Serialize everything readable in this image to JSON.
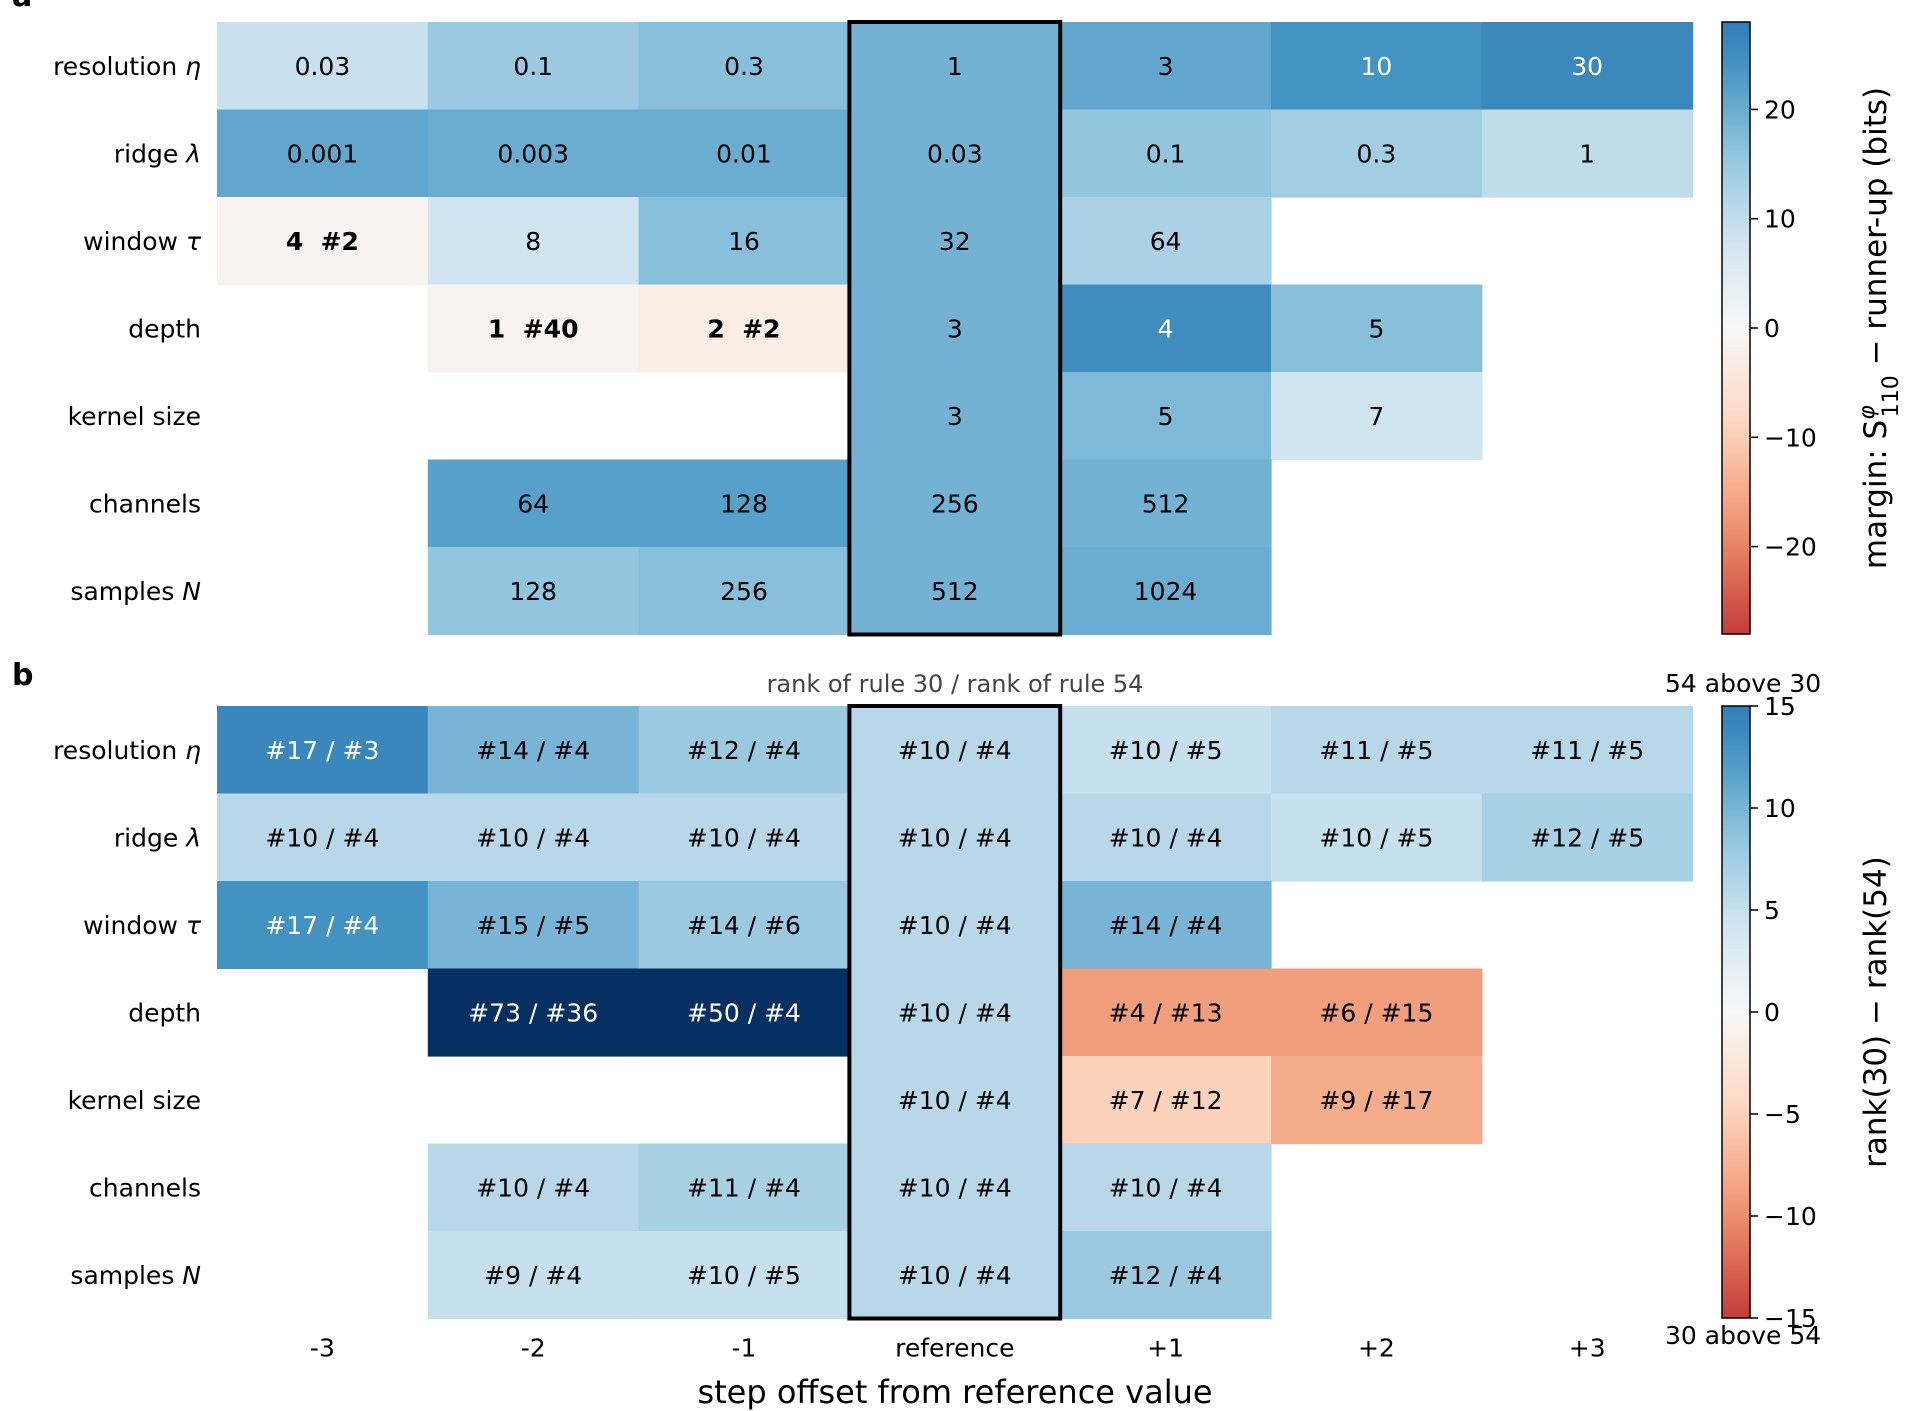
{
  "figure": {
    "xlabel": "step offset from reference value",
    "x_categories": [
      "-3",
      "-2",
      "-1",
      "reference",
      "+1",
      "+2",
      "+3"
    ],
    "row_labels": [
      "resolution η",
      "ridge λ",
      "window τ",
      "depth",
      "kernel size",
      "channels",
      "samples N"
    ]
  },
  "chart_data": [
    {
      "panel": "a",
      "type": "heatmap",
      "title": "",
      "categories_x": [
        "-3",
        "-2",
        "-1",
        "reference",
        "+1",
        "+2",
        "+3"
      ],
      "rows": [
        "resolution η",
        "ridge λ",
        "window τ",
        "depth",
        "kernel size",
        "channels",
        "samples N"
      ],
      "highlight_column": "reference",
      "cells": [
        [
          {
            "label": "0.03",
            "value": 9
          },
          {
            "label": "0.1",
            "value": 15
          },
          {
            "label": "0.3",
            "value": 17
          },
          {
            "label": "1",
            "value": 19
          },
          {
            "label": "3",
            "value": 21
          },
          {
            "label": "10",
            "value": 24
          },
          {
            "label": "30",
            "value": 26
          }
        ],
        [
          {
            "label": "0.001",
            "value": 21
          },
          {
            "label": "0.003",
            "value": 20
          },
          {
            "label": "0.01",
            "value": 20
          },
          {
            "label": "0.03",
            "value": 19
          },
          {
            "label": "0.1",
            "value": 16
          },
          {
            "label": "0.3",
            "value": 14
          },
          {
            "label": "1",
            "value": 10
          }
        ],
        [
          {
            "label": "4  #2",
            "value": -1,
            "bold": true
          },
          {
            "label": "8",
            "value": 8
          },
          {
            "label": "16",
            "value": 17
          },
          {
            "label": "32",
            "value": 19
          },
          {
            "label": "64",
            "value": 13
          },
          null,
          null
        ],
        [
          null,
          {
            "label": "1  #40",
            "value": -1,
            "bold": true
          },
          {
            "label": "2  #2",
            "value": -3,
            "bold": true
          },
          {
            "label": "3",
            "value": 19
          },
          {
            "label": "4",
            "value": 25
          },
          {
            "label": "5",
            "value": 17
          },
          null
        ],
        [
          null,
          null,
          null,
          {
            "label": "3",
            "value": 19
          },
          {
            "label": "5",
            "value": 18
          },
          {
            "label": "7",
            "value": 8
          },
          null
        ],
        [
          null,
          {
            "label": "64",
            "value": 22
          },
          {
            "label": "128",
            "value": 22
          },
          {
            "label": "256",
            "value": 19
          },
          {
            "label": "512",
            "value": 19
          },
          null,
          null
        ],
        [
          null,
          {
            "label": "128",
            "value": 16
          },
          {
            "label": "256",
            "value": 17
          },
          {
            "label": "512",
            "value": 19
          },
          {
            "label": "1024",
            "value": 20
          },
          null,
          null
        ]
      ],
      "colorbar": {
        "label": "margin: S^φ_110 − runner-up (bits)",
        "range": [
          -28,
          28
        ],
        "ticks": [
          20,
          10,
          0,
          -10,
          -20
        ],
        "tick_labels": [
          "20",
          "10",
          "0",
          "−10",
          "−20"
        ]
      }
    },
    {
      "panel": "b",
      "type": "heatmap",
      "title": "rank of rule 30 / rank of rule 54",
      "categories_x": [
        "-3",
        "-2",
        "-1",
        "reference",
        "+1",
        "+2",
        "+3"
      ],
      "rows": [
        "resolution η",
        "ridge λ",
        "window τ",
        "depth",
        "kernel size",
        "channels",
        "samples N"
      ],
      "highlight_column": "reference",
      "cells": [
        [
          {
            "label": "#17 / #3",
            "value": 14
          },
          {
            "label": "#14 / #4",
            "value": 10
          },
          {
            "label": "#12 / #4",
            "value": 8
          },
          {
            "label": "#10 / #4",
            "value": 6
          },
          {
            "label": "#10 / #5",
            "value": 5
          },
          {
            "label": "#11 / #5",
            "value": 6
          },
          {
            "label": "#11 / #5",
            "value": 6
          }
        ],
        [
          {
            "label": "#10 / #4",
            "value": 6
          },
          {
            "label": "#10 / #4",
            "value": 6
          },
          {
            "label": "#10 / #4",
            "value": 6
          },
          {
            "label": "#10 / #4",
            "value": 6
          },
          {
            "label": "#10 / #4",
            "value": 6
          },
          {
            "label": "#10 / #5",
            "value": 5
          },
          {
            "label": "#12 / #5",
            "value": 7
          }
        ],
        [
          {
            "label": "#17 / #4",
            "value": 13
          },
          {
            "label": "#15 / #5",
            "value": 10
          },
          {
            "label": "#14 / #6",
            "value": 8
          },
          {
            "label": "#10 / #4",
            "value": 6
          },
          {
            "label": "#14 / #4",
            "value": 10
          },
          null,
          null
        ],
        [
          null,
          {
            "label": "#73 / #36",
            "value": 37
          },
          {
            "label": "#50 / #4",
            "value": 46
          },
          {
            "label": "#10 / #4",
            "value": 6
          },
          {
            "label": "#4 / #13",
            "value": -9
          },
          {
            "label": "#6 / #15",
            "value": -9
          },
          null
        ],
        [
          null,
          null,
          null,
          {
            "label": "#10 / #4",
            "value": 6
          },
          {
            "label": "#7 / #12",
            "value": -5
          },
          {
            "label": "#9 / #17",
            "value": -8
          },
          null
        ],
        [
          null,
          {
            "label": "#10 / #4",
            "value": 6
          },
          {
            "label": "#11 / #4",
            "value": 7
          },
          {
            "label": "#10 / #4",
            "value": 6
          },
          {
            "label": "#10 / #4",
            "value": 6
          },
          null,
          null
        ],
        [
          null,
          {
            "label": "#9 / #4",
            "value": 5
          },
          {
            "label": "#10 / #5",
            "value": 5
          },
          {
            "label": "#10 / #4",
            "value": 6
          },
          {
            "label": "#12 / #4",
            "value": 8
          },
          null,
          null
        ]
      ],
      "colorbar": {
        "label": "rank(30) − rank(54)",
        "range": [
          -15,
          15
        ],
        "ticks": [
          15,
          10,
          5,
          0,
          -5,
          -10,
          -15
        ],
        "tick_labels": [
          "15",
          "10",
          "5",
          "0",
          "−5",
          "−10",
          "−15"
        ],
        "top_note": "54 above 30",
        "bottom_note": "30 above 54"
      }
    }
  ]
}
